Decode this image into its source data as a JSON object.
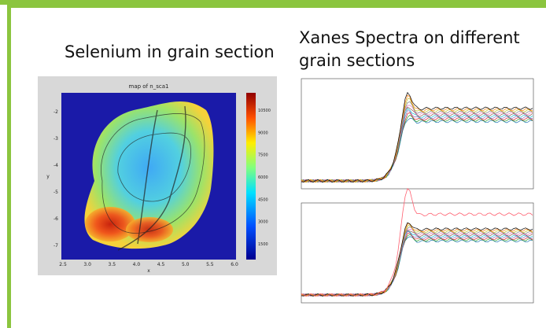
{
  "slide": {
    "left_title": "Selenium in grain section",
    "right_title": "Xanes Spectra on different grain sections",
    "map": {
      "title": "map of n_sca1",
      "x_label": "x",
      "y_label": "y",
      "x_ticks": [
        "2.5",
        "3.0",
        "3.5",
        "4.0",
        "4.5",
        "5.0",
        "5.5",
        "6.0"
      ],
      "y_ticks": [
        "-2",
        "-3",
        "-4",
        "-5",
        "-6",
        "-7"
      ],
      "colorbar_ticks": [
        "10500",
        "9000",
        "7500",
        "6000",
        "4500",
        "3000",
        "1500"
      ]
    }
  }
}
